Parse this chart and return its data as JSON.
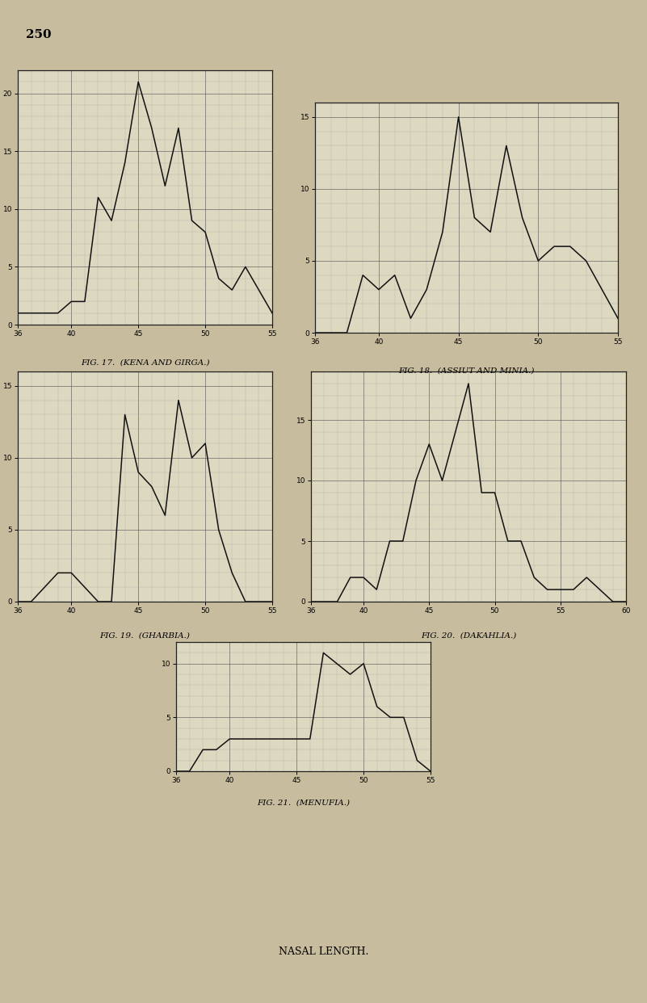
{
  "background_color": "#c8bc9e",
  "chart_bg": "#ddd8c0",
  "page_number": "250",
  "fig17": {
    "caption": "FIG. 17.  (KENA AND GIRGA.)",
    "x": [
      36,
      37,
      38,
      39,
      40,
      41,
      42,
      43,
      44,
      45,
      46,
      47,
      48,
      49,
      50,
      51,
      52,
      53,
      54,
      55
    ],
    "y": [
      1,
      1,
      1,
      1,
      2,
      2,
      11,
      9,
      14,
      21,
      17,
      12,
      17,
      9,
      8,
      4,
      3,
      5,
      3,
      1
    ],
    "xlim": [
      36,
      55
    ],
    "ylim": [
      0,
      22
    ],
    "ytick_labels": [
      "",
      "5",
      "",
      "15",
      "20"
    ],
    "ytick_vals": [
      0,
      5,
      10,
      15,
      20
    ],
    "xticks": [
      36,
      40,
      45,
      50,
      55
    ]
  },
  "fig18": {
    "caption": "FIG. 18.  (ASSIUT AND MINIA.)",
    "x": [
      36,
      37,
      38,
      39,
      40,
      41,
      42,
      43,
      44,
      45,
      46,
      47,
      48,
      49,
      50,
      51,
      52,
      53,
      54,
      55
    ],
    "y": [
      0,
      0,
      0,
      4,
      3,
      4,
      1,
      3,
      7,
      15,
      8,
      7,
      13,
      8,
      5,
      6,
      6,
      5,
      3,
      1
    ],
    "xlim": [
      36,
      55
    ],
    "ylim": [
      0,
      16
    ],
    "ytick_vals": [
      0,
      5,
      10,
      15
    ],
    "xticks": [
      36,
      40,
      45,
      50,
      55
    ]
  },
  "fig19": {
    "caption": "FIG. 19.  (GHARBIA.)",
    "x": [
      36,
      37,
      38,
      39,
      40,
      41,
      42,
      43,
      44,
      45,
      46,
      47,
      48,
      49,
      50,
      51,
      52,
      53,
      54,
      55
    ],
    "y": [
      0,
      0,
      1,
      2,
      2,
      1,
      0,
      0,
      13,
      9,
      8,
      6,
      14,
      10,
      11,
      5,
      2,
      0,
      0,
      0
    ],
    "xlim": [
      36,
      55
    ],
    "ylim": [
      0,
      16
    ],
    "ytick_vals": [
      0,
      5,
      10,
      15
    ],
    "xticks": [
      36,
      40,
      45,
      50,
      55
    ]
  },
  "fig20": {
    "caption": "FIG. 20.  (DAKAHLIA.)",
    "x": [
      36,
      37,
      38,
      39,
      40,
      41,
      42,
      43,
      44,
      45,
      46,
      47,
      48,
      49,
      50,
      51,
      52,
      53,
      54,
      55,
      56,
      57,
      58,
      59,
      60
    ],
    "y": [
      0,
      0,
      0,
      2,
      2,
      1,
      5,
      5,
      10,
      13,
      10,
      14,
      18,
      9,
      9,
      5,
      5,
      2,
      1,
      1,
      1,
      2,
      1,
      0,
      0
    ],
    "xlim": [
      36,
      60
    ],
    "ylim": [
      0,
      19
    ],
    "ytick_vals": [
      0,
      5,
      10,
      15
    ],
    "xticks": [
      36,
      40,
      45,
      50,
      55,
      60
    ]
  },
  "fig21": {
    "caption": "FIG. 21.  (MENUFIA.)",
    "x": [
      36,
      37,
      38,
      39,
      40,
      41,
      42,
      43,
      44,
      45,
      46,
      47,
      48,
      49,
      50,
      51,
      52,
      53,
      54,
      55
    ],
    "y": [
      0,
      0,
      2,
      2,
      3,
      3,
      3,
      3,
      3,
      3,
      3,
      11,
      10,
      9,
      10,
      6,
      5,
      5,
      1,
      0
    ],
    "xlim": [
      36,
      55
    ],
    "ylim": [
      0,
      12
    ],
    "ytick_vals": [
      0,
      5,
      10
    ],
    "xticks": [
      36,
      40,
      45,
      50,
      55
    ]
  },
  "footer": "NASAL LENGTH.",
  "line_color": "#111111",
  "grid_minor_color": "#999999",
  "grid_major_color": "#555555"
}
